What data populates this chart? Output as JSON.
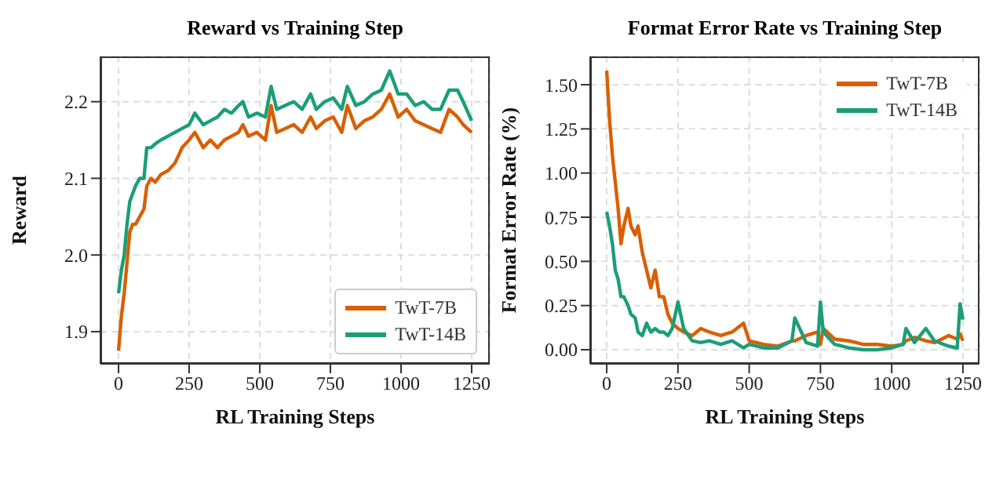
{
  "chart_data": [
    {
      "type": "line",
      "title": "Reward vs Training Step",
      "xlabel": "RL Training Steps",
      "ylabel": "Reward",
      "x": [
        0,
        10,
        20,
        30,
        40,
        50,
        60,
        75,
        90,
        100,
        115,
        130,
        150,
        175,
        200,
        225,
        250,
        270,
        300,
        325,
        350,
        375,
        400,
        425,
        440,
        460,
        490,
        520,
        540,
        560,
        590,
        620,
        650,
        680,
        700,
        730,
        760,
        790,
        810,
        840,
        870,
        900,
        930,
        960,
        990,
        1020,
        1050,
        1080,
        1110,
        1140,
        1170,
        1200,
        1220,
        1250
      ],
      "series": [
        {
          "name": "TwT-7B",
          "color": "#d95f02",
          "values": [
            1.875,
            1.92,
            1.95,
            1.99,
            2.03,
            2.04,
            2.04,
            2.05,
            2.06,
            2.09,
            2.1,
            2.095,
            2.105,
            2.11,
            2.12,
            2.14,
            2.15,
            2.16,
            2.14,
            2.15,
            2.14,
            2.15,
            2.155,
            2.16,
            2.17,
            2.155,
            2.16,
            2.15,
            2.195,
            2.16,
            2.165,
            2.17,
            2.16,
            2.18,
            2.165,
            2.175,
            2.18,
            2.16,
            2.195,
            2.165,
            2.175,
            2.18,
            2.19,
            2.21,
            2.18,
            2.19,
            2.175,
            2.17,
            2.165,
            2.16,
            2.19,
            2.18,
            2.17,
            2.16
          ]
        },
        {
          "name": "TwT-14B",
          "color": "#1b9e77",
          "values": [
            1.95,
            1.98,
            2.0,
            2.04,
            2.07,
            2.08,
            2.09,
            2.1,
            2.1,
            2.14,
            2.14,
            2.145,
            2.15,
            2.155,
            2.16,
            2.165,
            2.17,
            2.185,
            2.17,
            2.175,
            2.18,
            2.19,
            2.185,
            2.195,
            2.2,
            2.18,
            2.185,
            2.18,
            2.22,
            2.19,
            2.195,
            2.2,
            2.19,
            2.21,
            2.19,
            2.2,
            2.205,
            2.19,
            2.22,
            2.195,
            2.2,
            2.21,
            2.215,
            2.24,
            2.21,
            2.21,
            2.195,
            2.2,
            2.19,
            2.19,
            2.215,
            2.215,
            2.2,
            2.175
          ]
        }
      ],
      "xlim": [
        -64,
        1314
      ],
      "xticks": [
        0,
        250,
        500,
        750,
        1000,
        1250
      ],
      "ylim": [
        1.858,
        2.259
      ],
      "yticks": [
        1.9,
        {
          "value": 2,
          "label": "2.0"
        },
        2.1,
        2.2
      ],
      "grid": true,
      "legend": "bottom right",
      "line_style": "solid",
      "marker": "none"
    },
    {
      "type": "line",
      "title": "Format Error Rate vs Training Step",
      "xlabel": "RL Training Steps",
      "ylabel": "Format Error Rate (%)",
      "x": [
        0,
        10,
        20,
        30,
        40,
        50,
        60,
        75,
        85,
        100,
        110,
        125,
        140,
        155,
        170,
        185,
        200,
        215,
        230,
        250,
        270,
        300,
        330,
        360,
        400,
        440,
        480,
        500,
        550,
        600,
        650,
        660,
        700,
        740,
        750,
        760,
        800,
        850,
        900,
        950,
        1000,
        1040,
        1050,
        1080,
        1120,
        1150,
        1200,
        1230,
        1240,
        1250
      ],
      "series": [
        {
          "name": "TwT-7B",
          "color": "#d95f02",
          "values": [
            1.58,
            1.3,
            1.1,
            0.95,
            0.8,
            0.6,
            0.7,
            0.8,
            0.7,
            0.65,
            0.7,
            0.55,
            0.45,
            0.35,
            0.45,
            0.3,
            0.3,
            0.2,
            0.15,
            0.12,
            0.1,
            0.08,
            0.12,
            0.1,
            0.08,
            0.1,
            0.15,
            0.05,
            0.03,
            0.02,
            0.05,
            0.05,
            0.08,
            0.1,
            0.03,
            0.12,
            0.06,
            0.05,
            0.03,
            0.03,
            0.02,
            0.03,
            0.05,
            0.07,
            0.05,
            0.04,
            0.08,
            0.06,
            0.09,
            0.05
          ]
        },
        {
          "name": "TwT-14B",
          "color": "#1b9e77",
          "values": [
            0.78,
            0.7,
            0.6,
            0.45,
            0.4,
            0.3,
            0.3,
            0.25,
            0.2,
            0.18,
            0.1,
            0.08,
            0.15,
            0.1,
            0.12,
            0.1,
            0.1,
            0.08,
            0.12,
            0.27,
            0.12,
            0.05,
            0.04,
            0.05,
            0.03,
            0.05,
            0.01,
            0.03,
            0.01,
            0.01,
            0.05,
            0.18,
            0.04,
            0.02,
            0.27,
            0.1,
            0.03,
            0.01,
            0.0,
            0.0,
            0.01,
            0.03,
            0.12,
            0.04,
            0.12,
            0.05,
            0.02,
            0.01,
            0.26,
            0.17
          ]
        }
      ],
      "xlim": [
        -58,
        1308
      ],
      "xticks": [
        0,
        250,
        500,
        750,
        1000,
        1250
      ],
      "ylim": [
        -0.08,
        1.66
      ],
      "yticks": [
        {
          "value": 0,
          "label": "0.00"
        },
        {
          "value": 0.25,
          "label": "0.25"
        },
        {
          "value": 0.5,
          "label": "0.50"
        },
        {
          "value": 0.75,
          "label": "0.75"
        },
        {
          "value": 1,
          "label": "1.00"
        },
        {
          "value": 1.25,
          "label": "1.25"
        },
        {
          "value": 1.5,
          "label": "1.50"
        }
      ],
      "grid": true,
      "legend": "top right",
      "line_style": "solid",
      "marker": "none"
    }
  ]
}
